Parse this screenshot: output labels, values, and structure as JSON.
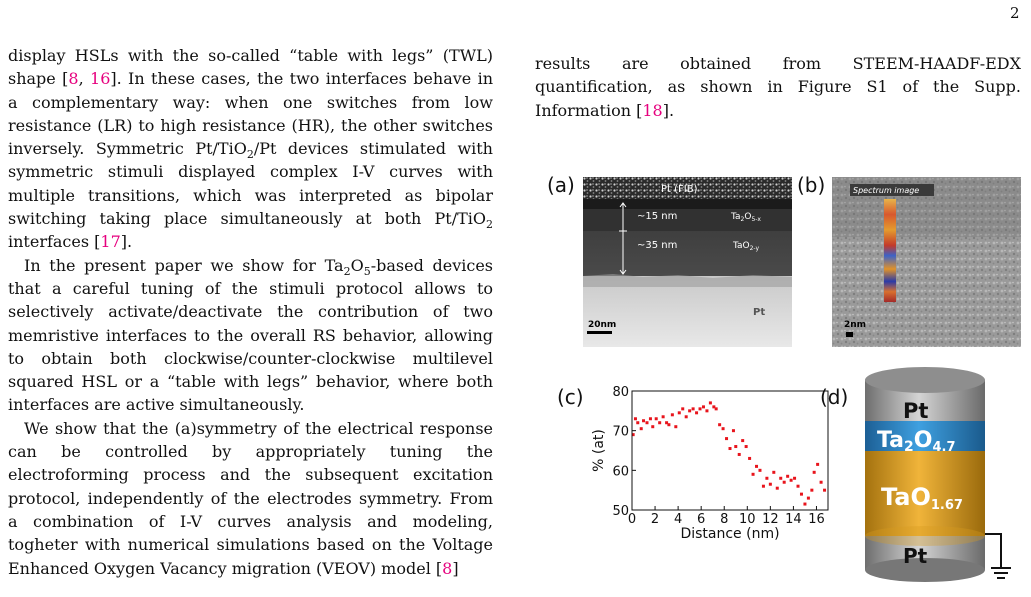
{
  "page_number": "2",
  "left_column": {
    "p1_a": "display HSLs with the so-called “table with legs” (TWL) shape [",
    "p1_cite1": "8",
    "p1_b": ", ",
    "p1_cite2": "16",
    "p1_c": "]. In these cases, the two interfaces behave in a complementary way: when one switches from low resistance (LR) to high resistance (HR), the other switches inversely. Symmetric Pt/TiO",
    "p1_d": "/Pt devices stimulated with symmetric stimuli displayed complex I-V curves with multiple transitions, which was interpreted as bipolar switching taking place simultaneously at both Pt/TiO",
    "p1_e": " interfaces [",
    "p1_cite3": "17",
    "p1_f": "].",
    "p2_a": "In the present paper we show for Ta",
    "p2_sub1": "2",
    "p2_b": "O",
    "p2_sub2": "5",
    "p2_c": "-based devices that a careful tuning of the stimuli protocol allows to selectively activate/deactivate the contribution of two memristive interfaces to the overall RS behavior, allowing to obtain both clockwise/counter-clockwise multilevel squared HSL or a “table with legs” behavior, where both interfaces are active simultaneously.",
    "p3_a": "We show that the (a)symmetry of the electrical response can be controlled by appropriately tuning the electroforming process and the subsequent excitation protocol, independently of the electrodes symmetry. From a combination of I-V curves analysis and modeling, togheter with numerical simulations based on the Voltage Enhanced Oxygen Vacancy migration (VEOV) model [",
    "p3_cite": "8",
    "p3_b": "]",
    "sub_2": "2"
  },
  "right_column": {
    "text_a": "results are obtained from STEEM-HAADF-EDX quantification, as shown in Figure S1 of the Supp. Information [",
    "cite": "18",
    "text_b": "]."
  },
  "figure": {
    "label_a": "(a)",
    "label_b": "(b)",
    "label_c": "(c)",
    "label_d": "(d)",
    "panel_a": {
      "top_layer": "Pt (FIB)",
      "thickness_1": "~15 nm",
      "thickness_2": "~35 nm",
      "layer_1": "Ta",
      "layer_1_sub": "2",
      "layer_1_mid": "O",
      "layer_1_sub2": "5-x",
      "layer_2": "TaO",
      "layer_2_sub": "2-y",
      "bottom_layer": "Pt",
      "scale_bar": "20nm"
    },
    "panel_b": {
      "caption": "Spectrum image",
      "scale_bar": "2nm"
    },
    "panel_d": {
      "top": "Pt",
      "layer1_base": "Ta",
      "layer1_sub": "2",
      "layer1_mid": "O",
      "layer1_sub2": "4.7",
      "layer2_base": "TaO",
      "layer2_sub": "1.67",
      "bottom": "Pt"
    }
  },
  "chart_data": {
    "type": "scatter",
    "title": "",
    "xlabel": "Distance (nm)",
    "ylabel": "% (at)",
    "xlim": [
      0,
      17
    ],
    "ylim": [
      50,
      80
    ],
    "xticks": [
      "0",
      "2",
      "4",
      "6",
      "8",
      "10",
      "12",
      "14",
      "16"
    ],
    "yticks": [
      "50",
      "60",
      "70",
      "80"
    ],
    "marker_color": "#e8141c",
    "points": [
      [
        0.1,
        69
      ],
      [
        0.3,
        73
      ],
      [
        0.5,
        72
      ],
      [
        0.8,
        70.5
      ],
      [
        1.0,
        72.5
      ],
      [
        1.3,
        72
      ],
      [
        1.6,
        73
      ],
      [
        1.8,
        71
      ],
      [
        2.1,
        73
      ],
      [
        2.4,
        72
      ],
      [
        2.7,
        73.5
      ],
      [
        3.0,
        72
      ],
      [
        3.2,
        71.5
      ],
      [
        3.5,
        74
      ],
      [
        3.8,
        71
      ],
      [
        4.1,
        74.5
      ],
      [
        4.4,
        75.5
      ],
      [
        4.7,
        73.5
      ],
      [
        5.0,
        75
      ],
      [
        5.3,
        75.5
      ],
      [
        5.6,
        74.5
      ],
      [
        5.9,
        75.5
      ],
      [
        6.2,
        76
      ],
      [
        6.5,
        75
      ],
      [
        6.8,
        77
      ],
      [
        7.1,
        76
      ],
      [
        7.3,
        75.5
      ],
      [
        7.6,
        71.5
      ],
      [
        7.9,
        70.5
      ],
      [
        8.2,
        68
      ],
      [
        8.5,
        65.5
      ],
      [
        8.8,
        70
      ],
      [
        9.0,
        66
      ],
      [
        9.3,
        64
      ],
      [
        9.6,
        67.5
      ],
      [
        9.9,
        66
      ],
      [
        10.2,
        63
      ],
      [
        10.5,
        59
      ],
      [
        10.8,
        61
      ],
      [
        11.1,
        60
      ],
      [
        11.4,
        56
      ],
      [
        11.7,
        58
      ],
      [
        12.0,
        56.5
      ],
      [
        12.3,
        59.5
      ],
      [
        12.6,
        55.5
      ],
      [
        12.9,
        58
      ],
      [
        13.2,
        57
      ],
      [
        13.5,
        58.5
      ],
      [
        13.8,
        57.5
      ],
      [
        14.1,
        58
      ],
      [
        14.4,
        56
      ],
      [
        14.7,
        54
      ],
      [
        15.0,
        51.5
      ],
      [
        15.3,
        53
      ],
      [
        15.6,
        55
      ],
      [
        15.8,
        59.5
      ],
      [
        16.1,
        61.5
      ],
      [
        16.4,
        57
      ],
      [
        16.7,
        55
      ]
    ]
  }
}
